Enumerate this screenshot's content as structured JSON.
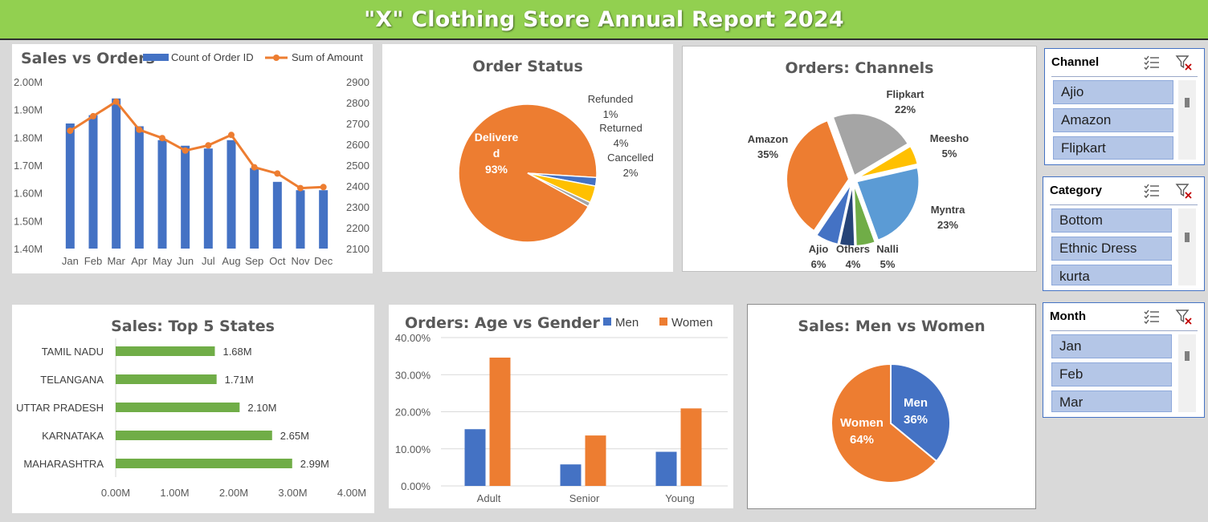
{
  "header": {
    "title": "\"X\" Clothing Store Annual Report 2024"
  },
  "colors": {
    "blue": "#4472c4",
    "orange": "#ed7d31",
    "gray": "#a5a5a5",
    "yellow": "#ffc000",
    "lightblue": "#5b9bd5",
    "green": "#70ad47",
    "navy": "#264478",
    "bar_green": "#70ad47",
    "banner": "#92d050"
  },
  "slicers": [
    {
      "title": "Channel",
      "items": [
        "Ajio",
        "Amazon",
        "Flipkart"
      ]
    },
    {
      "title": "Category",
      "items": [
        "Bottom",
        "Ethnic Dress",
        "kurta"
      ]
    },
    {
      "title": "Month",
      "items": [
        "Jan",
        "Feb",
        "Mar"
      ]
    }
  ],
  "chart_data": [
    {
      "type": "bar",
      "title": "Sales vs Orders",
      "categories": [
        "Jan",
        "Feb",
        "Mar",
        "Apr",
        "May",
        "Jun",
        "Jul",
        "Aug",
        "Sep",
        "Oct",
        "Nov",
        "Dec"
      ],
      "series": [
        {
          "name": "Count of Order ID",
          "type": "bar",
          "axis": "left",
          "values": [
            1.85,
            1.88,
            1.94,
            1.84,
            1.79,
            1.77,
            1.76,
            1.79,
            1.69,
            1.64,
            1.61,
            1.61
          ]
        },
        {
          "name": "Sum of Amount",
          "type": "line",
          "axis": "right",
          "values": [
            2665,
            2735,
            2805,
            2670,
            2630,
            2570,
            2595,
            2645,
            2490,
            2460,
            2390,
            2395
          ]
        }
      ],
      "y_left": {
        "ticks": [
          "1.40M",
          "1.50M",
          "1.60M",
          "1.70M",
          "1.80M",
          "1.90M",
          "2.00M"
        ],
        "range": [
          1.4,
          2.0
        ]
      },
      "y_right": {
        "ticks": [
          "2100",
          "2200",
          "2300",
          "2400",
          "2500",
          "2600",
          "2700",
          "2800",
          "2900"
        ],
        "range": [
          2100,
          2900
        ]
      },
      "legend": "top"
    },
    {
      "type": "pie",
      "title": "Order Status",
      "slices": [
        {
          "label": "Delivere\nd",
          "percent_label": "93%",
          "value": 93,
          "color": "#ed7d31"
        },
        {
          "label": "Cancelled",
          "percent_label": "2%",
          "value": 2,
          "color": "#4472c4"
        },
        {
          "label": "Returned",
          "percent_label": "4%",
          "value": 4,
          "color": "#ffc000"
        },
        {
          "label": "Refunded",
          "percent_label": "1%",
          "value": 1,
          "color": "#a5a5a5"
        }
      ]
    },
    {
      "type": "pie",
      "title": "Orders: Channels",
      "slices": [
        {
          "label": "Amazon",
          "percent_label": "35%",
          "value": 35,
          "color": "#ed7d31"
        },
        {
          "label": "Flipkart",
          "percent_label": "22%",
          "value": 22,
          "color": "#a5a5a5"
        },
        {
          "label": "Meesho",
          "percent_label": "5%",
          "value": 5,
          "color": "#ffc000"
        },
        {
          "label": "Myntra",
          "percent_label": "23%",
          "value": 23,
          "color": "#5b9bd5"
        },
        {
          "label": "Nalli",
          "percent_label": "5%",
          "value": 5,
          "color": "#70ad47"
        },
        {
          "label": "Others",
          "percent_label": "4%",
          "value": 4,
          "color": "#264478"
        },
        {
          "label": "Ajio",
          "percent_label": "6%",
          "value": 6,
          "color": "#4472c4"
        }
      ]
    },
    {
      "type": "bar",
      "orientation": "horizontal",
      "title": "Sales: Top 5 States",
      "categories": [
        "TAMIL NADU",
        "TELANGANA",
        "UTTAR PRADESH",
        "KARNATAKA",
        "MAHARASHTRA"
      ],
      "values": [
        1.68,
        1.71,
        2.1,
        2.65,
        2.99
      ],
      "value_labels": [
        "1.68M",
        "1.71M",
        "2.10M",
        "2.65M",
        "2.99M"
      ],
      "x_ticks": [
        "0.00M",
        "1.00M",
        "2.00M",
        "3.00M",
        "4.00M"
      ],
      "xlim": [
        0,
        4
      ]
    },
    {
      "type": "bar",
      "title": "Orders: Age vs Gender",
      "categories": [
        "Adult",
        "Senior",
        "Young"
      ],
      "series": [
        {
          "name": "Men",
          "values": [
            15.3,
            5.8,
            9.2
          ],
          "color": "#4472c4"
        },
        {
          "name": "Women",
          "values": [
            34.6,
            13.6,
            20.9
          ],
          "color": "#ed7d31"
        }
      ],
      "y_ticks": [
        "0.00%",
        "10.00%",
        "20.00%",
        "30.00%",
        "40.00%"
      ],
      "ylim": [
        0,
        40
      ],
      "legend": "top-right"
    },
    {
      "type": "pie",
      "title": "Sales: Men vs Women",
      "slices": [
        {
          "label": "Men",
          "percent_label": "36%",
          "value": 36,
          "color": "#4472c4"
        },
        {
          "label": "Women",
          "percent_label": "64%",
          "value": 64,
          "color": "#ed7d31"
        }
      ]
    }
  ]
}
